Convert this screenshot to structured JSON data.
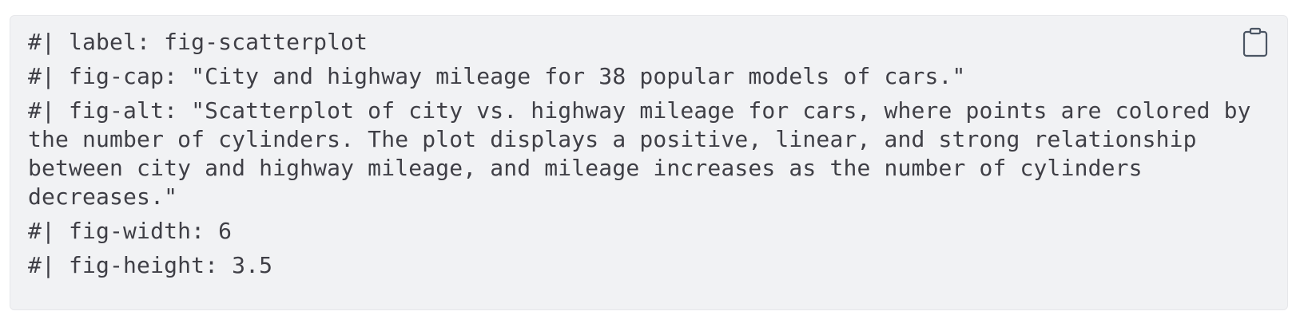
{
  "code_block": {
    "lines": [
      "#| label: fig-scatterplot",
      "#| fig-cap: \"City and highway mileage for 38 popular models of cars.\"",
      "#| fig-alt: \"Scatterplot of city vs. highway mileage for cars, where points are colored by the number of cylinders. The plot displays a positive, linear, and strong relationship between city and highway mileage, and mileage increases as the number of cylinders decreases.\"",
      "#| fig-width: 6",
      "#| fig-height: 3.5"
    ],
    "copy_icon": "clipboard-icon"
  },
  "colors": {
    "background": "#ffffff",
    "code_background": "#f1f2f4",
    "code_text": "#3f3f46",
    "icon": "#4b5563"
  }
}
